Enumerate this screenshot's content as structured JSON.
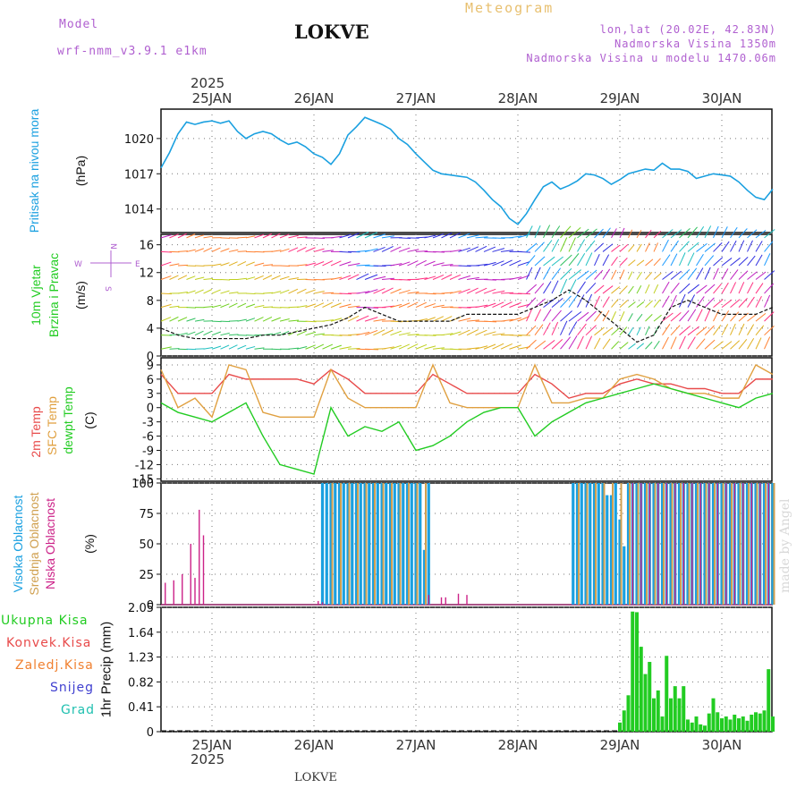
{
  "header": {
    "model_label": "Model",
    "model_name": "wrf-nmm_v3.9.1  e1km",
    "title": "LOKVE",
    "meteogram_label": "Meteogram",
    "lonlat": "lon,lat (20.02E, 42.83N)",
    "altitude": "Nadmorska Visina 1350m",
    "model_altitude": "Nadmorska Visina u modelu 1470.06m",
    "year_top": "2025",
    "year_bottom": "2025",
    "footer_location": "LOKVE",
    "watermark": "made by Angel"
  },
  "colors": {
    "pressure": "#1aa0e0",
    "temp2m": "#e84a4a",
    "sfc": "#e0a040",
    "dewpt": "#22cc22",
    "cloud_high": "#1aa0e0",
    "cloud_mid": "#d0a050",
    "cloud_low": "#cc2288",
    "precip": "#22cc22",
    "grid": "#777777"
  },
  "chart_data": [
    {
      "type": "line",
      "title": "Pritisak na nivou mora",
      "ylabel": "(hPa)",
      "yticks": [
        1014,
        1017,
        1020
      ],
      "ylim": [
        1012.0,
        1022.5
      ],
      "x_days": [
        "25JAN",
        "26JAN",
        "27JAN",
        "28JAN",
        "29JAN",
        "30JAN"
      ],
      "series": [
        {
          "name": "Pritisak na nivou mora",
          "x": [
            0,
            2,
            4,
            6,
            8,
            10,
            12,
            14,
            16,
            18,
            20,
            22,
            24,
            26,
            28,
            30,
            32,
            34,
            36,
            38,
            40,
            42,
            44,
            46,
            48,
            50,
            52,
            54,
            56,
            58,
            60,
            62,
            64,
            66,
            68,
            70,
            72,
            74,
            76,
            78,
            80,
            82,
            84,
            86,
            88,
            90,
            92,
            94,
            96,
            98,
            100,
            102,
            104,
            106,
            108,
            110,
            112,
            114,
            116,
            118,
            120,
            122,
            124,
            126,
            128,
            130,
            132,
            134,
            136,
            138,
            140,
            142,
            144
          ],
          "values": [
            1017.5,
            1018.8,
            1020.4,
            1021.4,
            1021.2,
            1021.4,
            1021.5,
            1021.3,
            1021.5,
            1020.6,
            1020.0,
            1020.4,
            1020.6,
            1020.4,
            1019.9,
            1019.5,
            1019.7,
            1019.3,
            1018.7,
            1018.4,
            1017.8,
            1018.7,
            1020.3,
            1021.0,
            1021.8,
            1021.5,
            1021.2,
            1020.8,
            1020.0,
            1019.5,
            1018.7,
            1018.0,
            1017.3,
            1017.0,
            1016.9,
            1016.8,
            1016.7,
            1016.3,
            1015.6,
            1014.8,
            1014.2,
            1013.2,
            1012.7,
            1013.6,
            1014.8,
            1015.9,
            1016.3,
            1015.7,
            1016.0,
            1016.4,
            1017.0,
            1016.9,
            1016.6,
            1016.1,
            1016.5,
            1017.0,
            1017.2,
            1017.4,
            1017.3,
            1017.9,
            1017.4,
            1017.4,
            1017.2,
            1016.6,
            1016.8,
            1017.0,
            1016.9,
            1016.8,
            1016.3,
            1015.6,
            1015.0,
            1014.8,
            1015.7
          ]
        }
      ]
    },
    {
      "type": "line",
      "title": "10m Vjetar Brzina i Pravac",
      "ylabel": "(m/s)",
      "yticks": [
        0,
        4,
        8,
        12,
        16
      ],
      "ylim": [
        0,
        17.5
      ],
      "compass": {
        "n": "N",
        "w": "W",
        "e": "E",
        "s": "S"
      },
      "series": [
        {
          "name": "Brzina",
          "x": [
            0,
            4,
            8,
            12,
            16,
            20,
            24,
            28,
            32,
            36,
            40,
            44,
            48,
            52,
            56,
            60,
            64,
            68,
            72,
            76,
            80,
            84,
            88,
            92,
            96,
            100,
            104,
            108,
            112,
            116,
            120,
            124,
            128,
            132,
            136,
            140,
            144
          ],
          "values": [
            4,
            3,
            2.5,
            2.5,
            2.5,
            2.5,
            3,
            3,
            3.5,
            4,
            4.5,
            5.5,
            7,
            6,
            5,
            5,
            5,
            5,
            6,
            6,
            6,
            6,
            7,
            8,
            9.5,
            8,
            6,
            4,
            2,
            3,
            7,
            8,
            7,
            6,
            6,
            6,
            7
          ]
        }
      ]
    },
    {
      "type": "line",
      "title": "2m Temp / SFC Temp / dewpt Temp",
      "ylabel": "(C)",
      "yticks": [
        -15,
        -12,
        -9,
        -6,
        -3,
        0,
        3,
        6,
        9
      ],
      "ylim": [
        -15.5,
        10.5
      ],
      "series": [
        {
          "name": "2m Temp",
          "x": [
            0,
            4,
            8,
            12,
            16,
            20,
            24,
            28,
            32,
            36,
            40,
            44,
            48,
            52,
            56,
            60,
            64,
            68,
            72,
            76,
            80,
            84,
            88,
            92,
            96,
            100,
            104,
            108,
            112,
            116,
            120,
            124,
            128,
            132,
            136,
            140,
            144
          ],
          "values": [
            7,
            3,
            3,
            3,
            7,
            6,
            6,
            6,
            6,
            5,
            8,
            6,
            3,
            3,
            3,
            3,
            7,
            5,
            3,
            3,
            3,
            3,
            7,
            5,
            2,
            3,
            3,
            5,
            6,
            5,
            5,
            4,
            4,
            3,
            3,
            6,
            6
          ]
        },
        {
          "name": "SFC Temp",
          "x": [
            0,
            4,
            8,
            12,
            16,
            20,
            24,
            28,
            32,
            36,
            40,
            44,
            48,
            52,
            56,
            60,
            64,
            68,
            72,
            76,
            80,
            84,
            88,
            92,
            96,
            100,
            104,
            108,
            112,
            116,
            120,
            124,
            128,
            132,
            136,
            140,
            144
          ],
          "values": [
            8,
            0,
            2,
            -2,
            9,
            8,
            -1,
            -2,
            -2,
            -2,
            8,
            2,
            0,
            0,
            0,
            0,
            9,
            1,
            0,
            0,
            0,
            0,
            9,
            1,
            1,
            2,
            2,
            6,
            7,
            6,
            4,
            3,
            3,
            2,
            2,
            9,
            7
          ]
        },
        {
          "name": "dewpt Temp",
          "x": [
            0,
            4,
            8,
            12,
            16,
            20,
            24,
            28,
            32,
            36,
            40,
            44,
            48,
            52,
            56,
            60,
            64,
            68,
            72,
            76,
            80,
            84,
            88,
            92,
            96,
            100,
            104,
            108,
            112,
            116,
            120,
            124,
            128,
            132,
            136,
            140,
            144
          ],
          "values": [
            1,
            -1,
            -2,
            -3,
            -1,
            1,
            -6,
            -12,
            -13,
            -14,
            0,
            -6,
            -4,
            -5,
            -3,
            -9,
            -8,
            -6,
            -3,
            -1,
            0,
            0,
            -6,
            -3,
            -1,
            1,
            2,
            3,
            4,
            5,
            4,
            3,
            2,
            1,
            0,
            2,
            3
          ]
        }
      ]
    },
    {
      "type": "bar",
      "title": "Visoka Oblacnost / Srednja Oblacnost / Niska Oblacnost",
      "ylabel": "(%)",
      "yticks": [
        0,
        25,
        50,
        75,
        100
      ],
      "ylim": [
        0,
        100
      ],
      "series": [
        {
          "name": "Visoka Oblacnost",
          "x": [
            38,
            39,
            40,
            41,
            42,
            43,
            44,
            45,
            46,
            47,
            48,
            49,
            50,
            51,
            52,
            53,
            54,
            55,
            56,
            57,
            58,
            59,
            60,
            61,
            62,
            63,
            97,
            98,
            99,
            100,
            101,
            102,
            103,
            104,
            105,
            106,
            107,
            108,
            109,
            110,
            111,
            112,
            113,
            114,
            115,
            116,
            117,
            118,
            119,
            120,
            121,
            122,
            123,
            124,
            125,
            126,
            127,
            128,
            129,
            130,
            131,
            132,
            133,
            134,
            135,
            136,
            137,
            138,
            139,
            140,
            141,
            142,
            143,
            144
          ],
          "values": [
            100,
            100,
            100,
            100,
            100,
            100,
            100,
            100,
            100,
            100,
            100,
            100,
            100,
            100,
            100,
            100,
            100,
            100,
            100,
            100,
            100,
            100,
            100,
            100,
            45,
            100,
            100,
            100,
            100,
            100,
            100,
            100,
            100,
            100,
            90,
            90,
            100,
            70,
            48,
            100,
            100,
            100,
            100,
            100,
            100,
            100,
            100,
            100,
            100,
            100,
            100,
            100,
            100,
            100,
            100,
            100,
            100,
            100,
            100,
            100,
            100,
            100,
            100,
            100,
            100,
            100,
            100,
            100,
            100,
            100,
            100,
            100,
            100,
            100
          ]
        },
        {
          "name": "Srednja Oblacnost",
          "x": [
            40,
            42,
            44,
            46,
            48,
            50,
            52,
            54,
            56,
            58,
            60,
            62,
            98,
            100,
            102,
            104,
            106,
            108,
            110,
            112,
            114,
            116,
            118,
            120,
            122,
            124,
            126,
            128,
            130,
            132,
            134,
            136,
            138,
            140,
            142,
            144
          ],
          "values": [
            100,
            100,
            100,
            100,
            100,
            100,
            100,
            100,
            100,
            100,
            100,
            100,
            100,
            100,
            100,
            100,
            100,
            100,
            100,
            100,
            100,
            100,
            100,
            100,
            100,
            100,
            100,
            100,
            100,
            100,
            100,
            100,
            100,
            100,
            100,
            100
          ]
        },
        {
          "name": "Niska Oblacnost",
          "x": [
            1,
            3,
            5,
            7,
            8,
            9,
            10,
            37,
            38,
            63,
            66,
            67,
            70,
            72,
            111,
            113,
            115,
            117,
            119,
            121,
            123,
            125,
            127,
            129,
            131,
            133,
            135,
            137,
            139,
            141,
            143
          ],
          "values": [
            18,
            20,
            25,
            50,
            22,
            78,
            57,
            3,
            2,
            8,
            6,
            6,
            9,
            8,
            100,
            100,
            100,
            100,
            100,
            100,
            100,
            100,
            100,
            100,
            100,
            100,
            100,
            100,
            100,
            100,
            100
          ]
        }
      ]
    },
    {
      "type": "bar",
      "title": "1hr Precip (mm)",
      "ylabel": "1hr Precip (mm)",
      "yticks": [
        0,
        0.41,
        0.82,
        1.23,
        1.64,
        2.05
      ],
      "ylim": [
        0,
        2.05
      ],
      "legend": [
        "Ukupna Kisa",
        "Konvek.Kisa",
        "Zaledj.Kisa",
        "Snijeg",
        "Grad"
      ],
      "series": [
        {
          "name": "Ukupna Kisa",
          "x": [
            108,
            109,
            110,
            111,
            112,
            113,
            114,
            115,
            116,
            117,
            118,
            119,
            120,
            121,
            122,
            123,
            124,
            125,
            126,
            127,
            128,
            129,
            130,
            131,
            132,
            133,
            134,
            135,
            136,
            137,
            138,
            139,
            140,
            141,
            142,
            143,
            144
          ],
          "values": [
            0.15,
            0.35,
            0.6,
            1.98,
            1.97,
            1.4,
            0.95,
            1.15,
            0.55,
            0.68,
            0.25,
            1.25,
            0.55,
            0.75,
            0.55,
            0.75,
            0.2,
            0.15,
            0.25,
            0.12,
            0.1,
            0.3,
            0.55,
            0.32,
            0.22,
            0.25,
            0.2,
            0.28,
            0.22,
            0.25,
            0.18,
            0.28,
            0.32,
            0.3,
            0.35,
            1.03,
            0.25
          ]
        }
      ]
    }
  ]
}
